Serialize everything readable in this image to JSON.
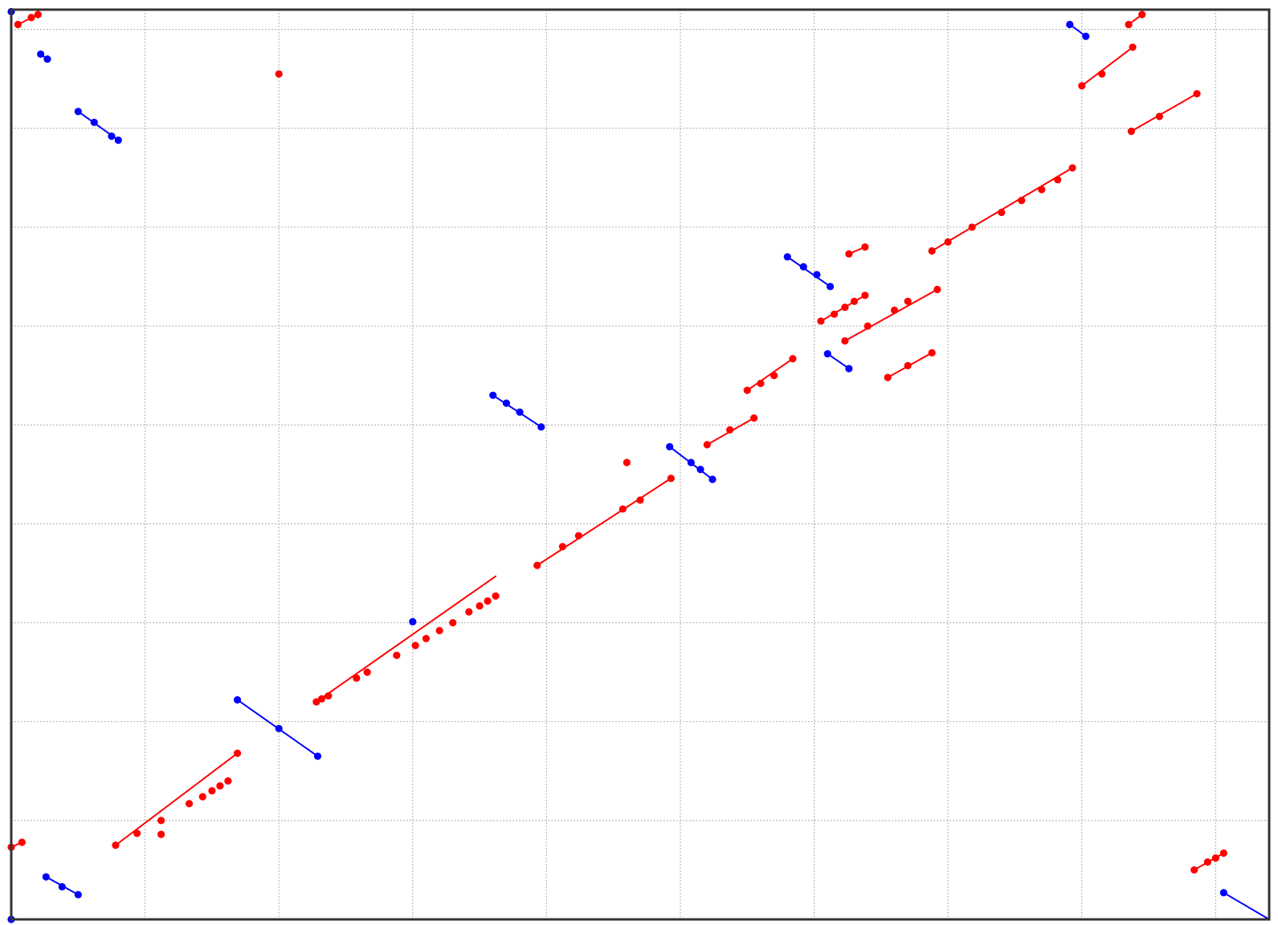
{
  "chart_data": {
    "type": "scatter",
    "title": "",
    "xlabel": "",
    "ylabel": "",
    "xlim": [
      0,
      9.4
    ],
    "ylim": [
      0,
      9.2
    ],
    "grid": true,
    "legend": "none",
    "colors": {
      "forward": "#ff0000",
      "reverse": "#0000ff",
      "frame": "#333333",
      "grid": "#bbbbbb"
    },
    "series": [
      {
        "color": "#ff0000",
        "segments": [
          [
            [
              0.05,
              9.05
            ],
            [
              0.2,
              9.15
            ]
          ],
          [
            [
              0.78,
              0.75
            ],
            [
              1.69,
              1.68
            ]
          ],
          [
            [
              2.28,
              2.2
            ],
            [
              3.62,
              3.47
            ]
          ],
          [
            [
              3.93,
              3.58
            ],
            [
              4.93,
              4.46
            ]
          ],
          [
            [
              5.2,
              4.8
            ],
            [
              5.55,
              5.07
            ]
          ],
          [
            [
              5.5,
              5.35
            ],
            [
              5.84,
              5.67
            ]
          ],
          [
            [
              6.05,
              6.05
            ],
            [
              6.38,
              6.31
            ]
          ],
          [
            [
              6.23,
              5.85
            ],
            [
              6.92,
              6.37
            ]
          ],
          [
            [
              6.26,
              6.73
            ],
            [
              6.38,
              6.8
            ]
          ],
          [
            [
              6.55,
              5.48
            ],
            [
              6.88,
              5.73
            ]
          ],
          [
            [
              6.88,
              6.76
            ],
            [
              7.93,
              7.6
            ]
          ],
          [
            [
              8.0,
              8.43
            ],
            [
              8.38,
              8.82
            ]
          ],
          [
            [
              8.35,
              9.05
            ],
            [
              8.45,
              9.15
            ]
          ],
          [
            [
              8.37,
              7.97
            ],
            [
              8.86,
              8.35
            ]
          ],
          [
            [
              8.84,
              0.5
            ],
            [
              9.06,
              0.67
            ]
          ],
          [
            [
              0.0,
              0.73
            ],
            [
              0.08,
              0.78
            ]
          ]
        ],
        "points": [
          [
            0.05,
            9.05
          ],
          [
            0.15,
            9.12
          ],
          [
            0.2,
            9.15
          ],
          [
            2.0,
            8.55
          ],
          [
            0.0,
            0.73
          ],
          [
            0.08,
            0.78
          ],
          [
            0.78,
            0.75
          ],
          [
            0.94,
            0.87
          ],
          [
            1.12,
            1.0
          ],
          [
            1.33,
            1.17
          ],
          [
            1.43,
            1.24
          ],
          [
            1.5,
            1.3
          ],
          [
            1.56,
            1.35
          ],
          [
            1.62,
            1.4
          ],
          [
            1.69,
            1.68
          ],
          [
            1.12,
            0.86
          ],
          [
            2.28,
            2.2
          ],
          [
            2.32,
            2.23
          ],
          [
            2.37,
            2.26
          ],
          [
            2.58,
            2.44
          ],
          [
            2.66,
            2.5
          ],
          [
            2.88,
            2.67
          ],
          [
            3.02,
            2.77
          ],
          [
            3.1,
            2.84
          ],
          [
            3.2,
            2.92
          ],
          [
            3.3,
            3.0
          ],
          [
            3.42,
            3.11
          ],
          [
            3.5,
            3.17
          ],
          [
            3.56,
            3.22
          ],
          [
            3.62,
            3.27
          ],
          [
            3.93,
            3.58
          ],
          [
            4.12,
            3.77
          ],
          [
            4.24,
            3.88
          ],
          [
            4.57,
            4.15
          ],
          [
            4.7,
            4.24
          ],
          [
            4.93,
            4.46
          ],
          [
            4.6,
            4.62
          ],
          [
            5.2,
            4.8
          ],
          [
            5.37,
            4.95
          ],
          [
            5.55,
            5.07
          ],
          [
            5.5,
            5.35
          ],
          [
            5.6,
            5.42
          ],
          [
            5.7,
            5.5
          ],
          [
            5.84,
            5.67
          ],
          [
            6.05,
            6.05
          ],
          [
            6.15,
            6.12
          ],
          [
            6.23,
            6.19
          ],
          [
            6.3,
            6.25
          ],
          [
            6.38,
            6.31
          ],
          [
            6.23,
            5.85
          ],
          [
            6.4,
            6.0
          ],
          [
            6.6,
            6.16
          ],
          [
            6.7,
            6.25
          ],
          [
            6.92,
            6.37
          ],
          [
            6.26,
            6.73
          ],
          [
            6.38,
            6.8
          ],
          [
            6.55,
            5.48
          ],
          [
            6.7,
            5.6
          ],
          [
            6.88,
            5.73
          ],
          [
            6.88,
            6.76
          ],
          [
            7.0,
            6.85
          ],
          [
            7.18,
            7.0
          ],
          [
            7.4,
            7.15
          ],
          [
            7.55,
            7.27
          ],
          [
            7.7,
            7.38
          ],
          [
            7.82,
            7.48
          ],
          [
            7.93,
            7.6
          ],
          [
            8.0,
            8.43
          ],
          [
            8.15,
            8.55
          ],
          [
            8.38,
            8.82
          ],
          [
            8.35,
            9.05
          ],
          [
            8.45,
            9.15
          ],
          [
            8.37,
            7.97
          ],
          [
            8.58,
            8.12
          ],
          [
            8.86,
            8.35
          ],
          [
            8.84,
            0.5
          ],
          [
            8.94,
            0.58
          ],
          [
            9.0,
            0.62
          ],
          [
            9.06,
            0.67
          ]
        ]
      },
      {
        "color": "#0000ff",
        "segments": [
          [
            [
              0.22,
              8.75
            ],
            [
              0.27,
              8.7
            ]
          ],
          [
            [
              0.5,
              8.17
            ],
            [
              0.8,
              7.88
            ]
          ],
          [
            [
              0.26,
              0.43
            ],
            [
              0.5,
              0.25
            ]
          ],
          [
            [
              1.69,
              2.22
            ],
            [
              2.29,
              1.65
            ]
          ],
          [
            [
              3.6,
              5.3
            ],
            [
              3.96,
              4.98
            ]
          ],
          [
            [
              4.92,
              4.78
            ],
            [
              5.24,
              4.45
            ]
          ],
          [
            [
              5.8,
              6.7
            ],
            [
              6.12,
              6.4
            ]
          ],
          [
            [
              6.1,
              5.72
            ],
            [
              6.26,
              5.57
            ]
          ],
          [
            [
              7.91,
              9.05
            ],
            [
              8.03,
              8.93
            ]
          ],
          [
            [
              9.06,
              0.27
            ],
            [
              9.4,
              0.0
            ]
          ]
        ],
        "points": [
          [
            0.0,
            9.18
          ],
          [
            0.0,
            0.0
          ],
          [
            0.22,
            8.75
          ],
          [
            0.27,
            8.7
          ],
          [
            0.5,
            8.17
          ],
          [
            0.62,
            8.06
          ],
          [
            0.75,
            7.92
          ],
          [
            0.8,
            7.88
          ],
          [
            0.26,
            0.43
          ],
          [
            0.38,
            0.33
          ],
          [
            0.5,
            0.25
          ],
          [
            1.69,
            2.22
          ],
          [
            2.0,
            1.93
          ],
          [
            2.29,
            1.65
          ],
          [
            3.0,
            3.01
          ],
          [
            3.6,
            5.3
          ],
          [
            3.7,
            5.22
          ],
          [
            3.8,
            5.13
          ],
          [
            3.96,
            4.98
          ],
          [
            4.92,
            4.78
          ],
          [
            5.08,
            4.62
          ],
          [
            5.15,
            4.55
          ],
          [
            5.24,
            4.45
          ],
          [
            5.8,
            6.7
          ],
          [
            5.92,
            6.6
          ],
          [
            6.02,
            6.52
          ],
          [
            6.12,
            6.4
          ],
          [
            6.1,
            5.72
          ],
          [
            6.26,
            5.57
          ],
          [
            7.91,
            9.05
          ],
          [
            8.03,
            8.93
          ],
          [
            9.06,
            0.27
          ]
        ]
      }
    ]
  }
}
